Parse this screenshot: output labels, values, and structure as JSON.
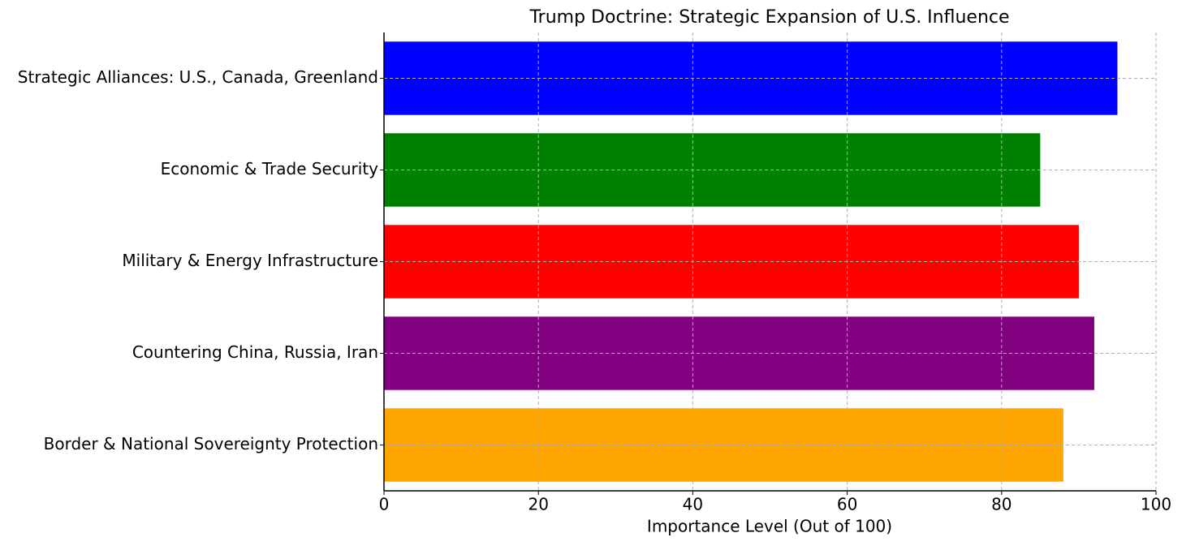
{
  "chart_data": {
    "type": "barh",
    "title": "Trump Doctrine: Strategic Expansion of U.S. Influence",
    "x_label": "Importance Level (Out of 100)",
    "categories": [
      "Strategic Alliances: U.S., Canada, Greenland",
      "Economic & Trade Security",
      "Military & Energy Infrastructure",
      "Countering China, Russia, Iran",
      "Border & National Sovereignty Protection"
    ],
    "values": [
      95,
      85,
      90,
      92,
      88
    ],
    "colors": [
      "#0000ff",
      "#008000",
      "#ff0000",
      "#800080",
      "#ffa500"
    ],
    "xlim": [
      0,
      100
    ],
    "xticks": [
      0,
      20,
      40,
      60,
      80,
      100
    ],
    "grid": true
  }
}
